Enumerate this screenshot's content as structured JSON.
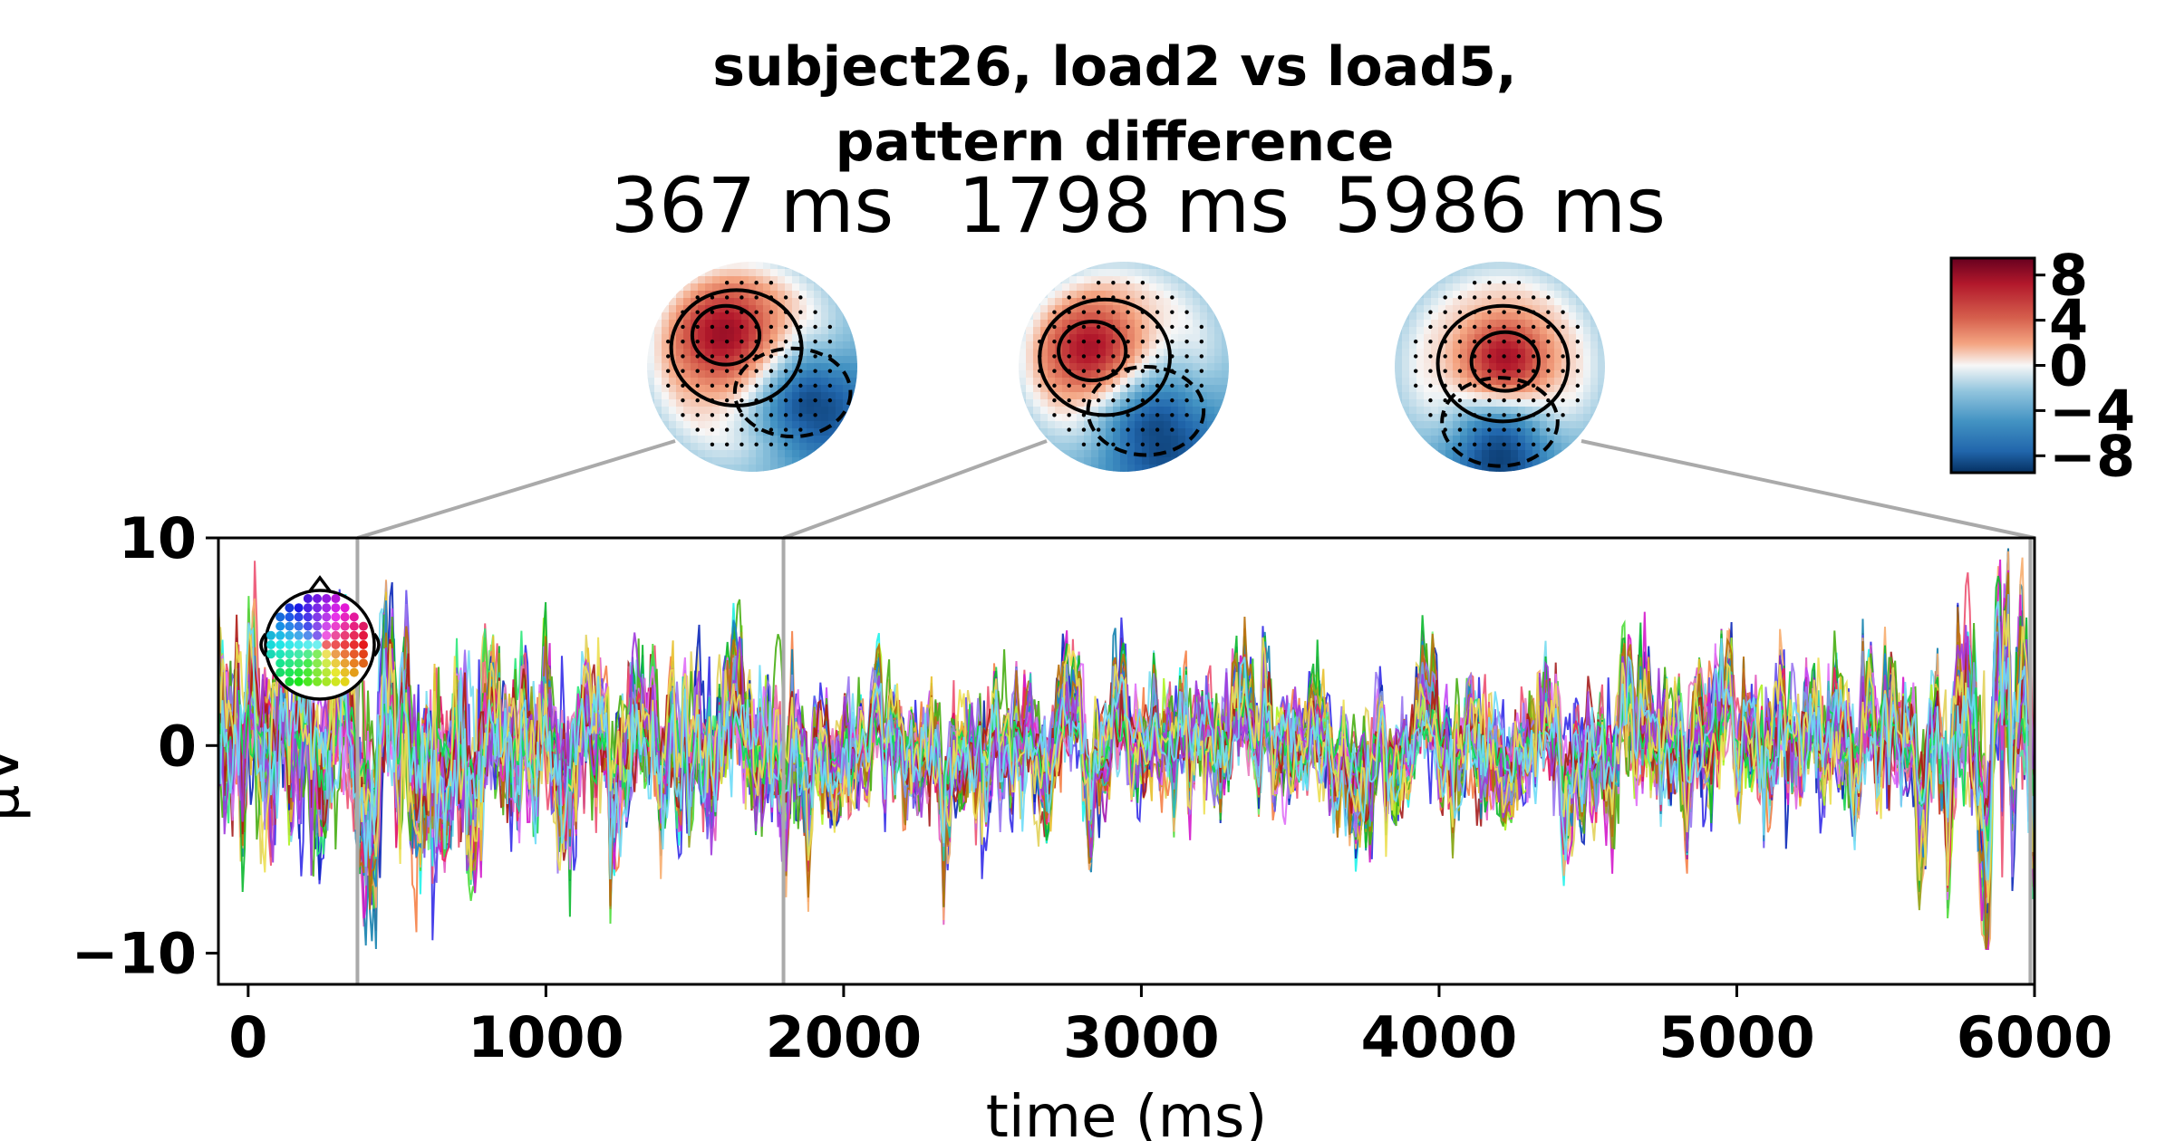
{
  "chart_data": {
    "type": "line",
    "title_line1": "subject26, load2 vs load5,",
    "title_line2": "pattern difference",
    "xlabel": "time (ms)",
    "ylabel": "µV",
    "xlim": [
      -100,
      6000
    ],
    "ylim": [
      -11.5,
      10
    ],
    "xticks": [
      0,
      1000,
      2000,
      3000,
      4000,
      5000,
      6000
    ],
    "xtick_labels": [
      "0",
      "1000",
      "2000",
      "3000",
      "4000",
      "5000",
      "6000"
    ],
    "yticks": [
      -10,
      0,
      10
    ],
    "ytick_labels": [
      "−10",
      "0",
      "10"
    ],
    "grid": false,
    "series_count": 60,
    "legend": "channel-location inset, top-left",
    "topomaps": [
      {
        "time_ms": 367,
        "label": "367 ms"
      },
      {
        "time_ms": 1798,
        "label": "1798 ms"
      },
      {
        "time_ms": 5986,
        "label": "5986 ms"
      }
    ],
    "colorbar": {
      "cmap": "RdBu_r",
      "range": [
        -9.5,
        9.5
      ],
      "ticks": [
        8,
        4,
        0,
        -4,
        -8
      ],
      "tick_labels": [
        "8",
        "4",
        "0",
        "−4",
        "−8"
      ]
    }
  }
}
